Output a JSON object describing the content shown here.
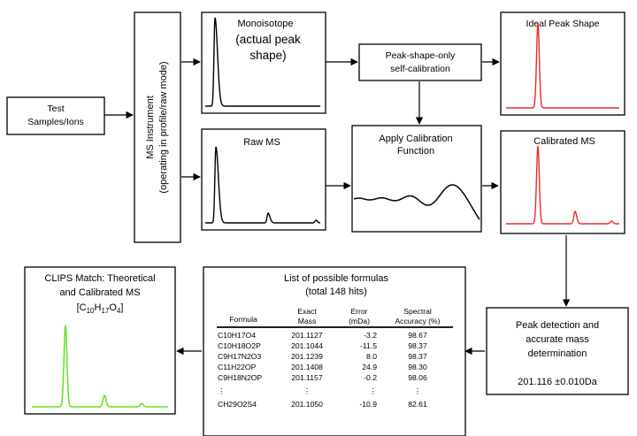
{
  "nodes": {
    "test_samples": {
      "line1": "Test",
      "line2": "Samples/Ions"
    },
    "instrument": {
      "line1": "MS Instrument",
      "line2": "(operating in profile/raw mode)"
    },
    "monoisotope": {
      "line1": "Monoisotope",
      "line2": "(actual peak",
      "line3": "shape)"
    },
    "raw_ms": {
      "title": "Raw MS"
    },
    "self_cal": {
      "line1": "Peak-shape-only",
      "line2": "self-calibration"
    },
    "apply_cal": {
      "line1": "Apply Calibration",
      "line2": "Function"
    },
    "ideal": {
      "title": "Ideal Peak Shape"
    },
    "calibrated": {
      "title": "Calibrated MS"
    },
    "peak_detect": {
      "line1": "Peak detection and",
      "line2": "accurate mass",
      "line3": "determination",
      "value": "201.116 ±0.010Da"
    },
    "formulas": {
      "title1": "List of possible formulas",
      "title2": "(total 148 hits)",
      "headers": {
        "formula": "Formula",
        "mass1": "Exact",
        "mass2": "Mass",
        "error1": "Error",
        "error2": "(mDa)",
        "acc1": "Spectral",
        "acc2": "Accuracy (%)"
      },
      "rows": [
        {
          "formula": "C10H17O4",
          "mass": "201.1127",
          "error": "-3.2",
          "accuracy": "98.67"
        },
        {
          "formula": "C10H18O2P",
          "mass": "201.1044",
          "error": "-11.5",
          "accuracy": "98.37"
        },
        {
          "formula": "C9H17N2O3",
          "mass": "201.1239",
          "error": "8.0",
          "accuracy": "98.37"
        },
        {
          "formula": "C11H22OP",
          "mass": "201.1408",
          "error": "24.9",
          "accuracy": "98.30"
        },
        {
          "formula": "C9H18N2OP",
          "mass": "201.1157",
          "error": "-0.2",
          "accuracy": "98.06"
        },
        {
          "formula": "⋮",
          "mass": "⋮",
          "error": "⋮",
          "accuracy": "⋮"
        },
        {
          "formula": "CH29O2S4",
          "mass": "201.1050",
          "error": "-10.9",
          "accuracy": "82.61"
        }
      ]
    },
    "clips": {
      "line1": "CLIPS Match: Theoretical",
      "line2": "and Calibrated MS",
      "formula_open": "[C",
      "sub1": "10",
      "mid1": "H",
      "sub2": "17",
      "mid2": "O",
      "sub3": "4",
      "formula_close": "]"
    }
  },
  "colors": {
    "ideal_peak": "#ee2a2a",
    "calibrated_peak": "#ee2a2a",
    "clips_peak": "#66dd22",
    "raw_peak": "#000000"
  }
}
